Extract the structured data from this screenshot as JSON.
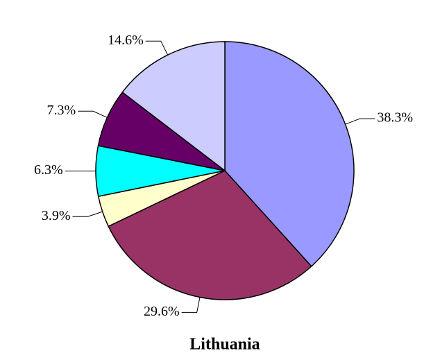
{
  "chart_data": {
    "type": "pie",
    "title": "Lithuania",
    "values": [
      38.3,
      29.6,
      3.9,
      6.3,
      7.3,
      14.6
    ],
    "value_labels": [
      "38.3%",
      "29.6%",
      "3.9%",
      "6.3%",
      "7.3%",
      "14.6%"
    ],
    "colors": [
      "#9999ff",
      "#993366",
      "#ffffcc",
      "#00ffff",
      "#660066",
      "#ccccff"
    ]
  }
}
